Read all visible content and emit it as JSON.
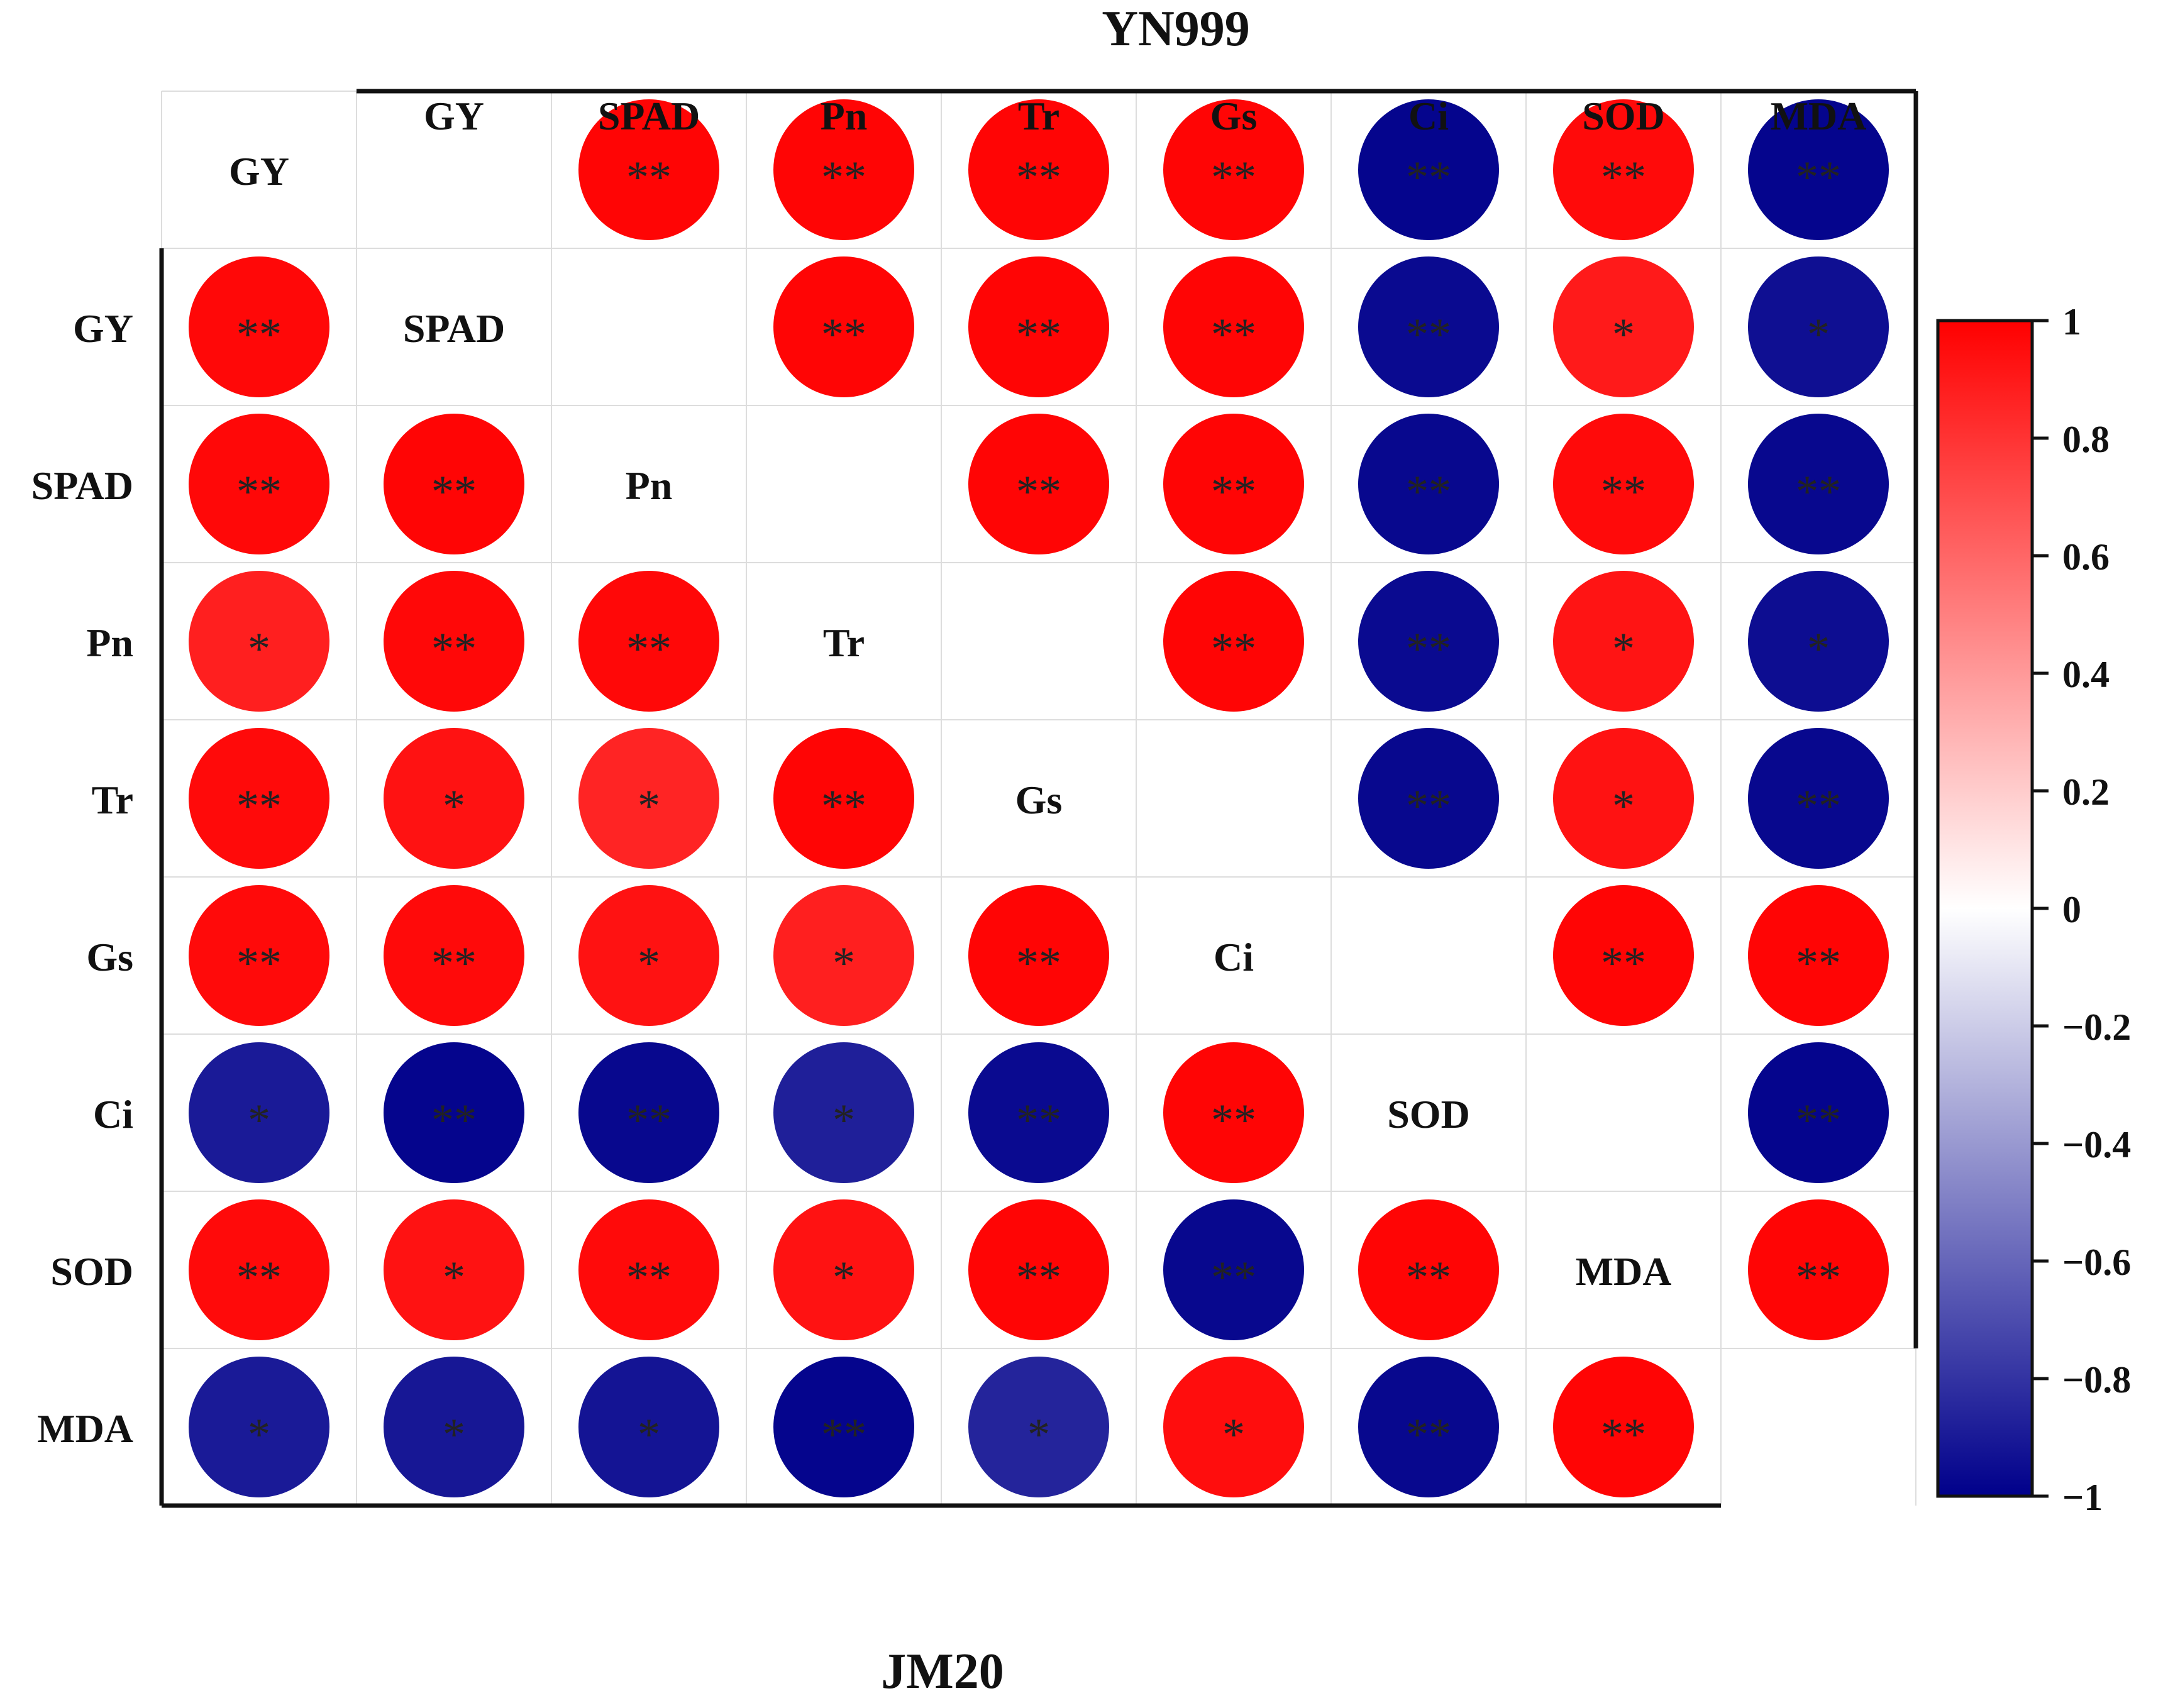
{
  "chart_data": {
    "type": "heatmap",
    "top_title": "YN999",
    "bottom_title": "JM20",
    "variables": [
      "GY",
      "SPAD",
      "Pn",
      "Tr",
      "Gs",
      "Ci",
      "SOD",
      "MDA"
    ],
    "upper_matrix": [
      [
        null,
        0.98,
        0.98,
        0.98,
        0.98,
        -0.98,
        0.96,
        -0.98
      ],
      [
        null,
        null,
        0.98,
        0.98,
        0.98,
        -0.96,
        0.9,
        -0.94
      ],
      [
        null,
        null,
        null,
        0.98,
        0.98,
        -0.97,
        0.96,
        -0.97
      ],
      [
        null,
        null,
        null,
        null,
        0.98,
        -0.96,
        0.92,
        -0.95
      ],
      [
        null,
        null,
        null,
        null,
        null,
        -0.97,
        0.93,
        -0.97
      ],
      [
        null,
        null,
        null,
        null,
        null,
        null,
        0.98,
        0.98
      ],
      [
        null,
        null,
        null,
        null,
        null,
        null,
        null,
        -0.98
      ],
      [
        null,
        null,
        null,
        null,
        null,
        null,
        null,
        0.98
      ]
    ],
    "upper_sig": [
      [
        null,
        "**",
        "**",
        "**",
        "**",
        "**",
        "**",
        "**"
      ],
      [
        null,
        null,
        "**",
        "**",
        "**",
        "**",
        "*",
        "*"
      ],
      [
        null,
        null,
        null,
        "**",
        "**",
        "**",
        "**",
        "**"
      ],
      [
        null,
        null,
        null,
        null,
        "**",
        "**",
        "*",
        "*"
      ],
      [
        null,
        null,
        null,
        null,
        null,
        "**",
        "*",
        "**"
      ],
      [
        null,
        null,
        null,
        null,
        null,
        null,
        "**",
        "**"
      ],
      [
        null,
        null,
        null,
        null,
        null,
        null,
        null,
        "**"
      ],
      [
        null,
        null,
        null,
        null,
        null,
        null,
        null,
        "**"
      ]
    ],
    "lower_matrix": [
      [
        0.97,
        null,
        null,
        null,
        null,
        null,
        null,
        null
      ],
      [
        0.97,
        0.98,
        null,
        null,
        null,
        null,
        null,
        null
      ],
      [
        0.88,
        0.97,
        0.97,
        null,
        null,
        null,
        null,
        null
      ],
      [
        0.96,
        0.93,
        0.86,
        0.98,
        null,
        null,
        null,
        null
      ],
      [
        0.96,
        0.96,
        0.93,
        0.88,
        0.98,
        null,
        null,
        null
      ],
      [
        -0.9,
        -0.98,
        -0.97,
        -0.88,
        -0.96,
        0.98,
        null,
        null
      ],
      [
        0.96,
        0.93,
        0.96,
        0.93,
        0.98,
        -0.97,
        0.98,
        null
      ],
      [
        -0.9,
        -0.91,
        -0.92,
        -0.98,
        -0.86,
        0.95,
        -0.97,
        0.98
      ]
    ],
    "lower_sig": [
      [
        "**",
        null,
        null,
        null,
        null,
        null,
        null,
        null
      ],
      [
        "**",
        "**",
        null,
        null,
        null,
        null,
        null,
        null
      ],
      [
        "*",
        "**",
        "**",
        null,
        null,
        null,
        null,
        null
      ],
      [
        "**",
        "*",
        "*",
        "**",
        null,
        null,
        null,
        null
      ],
      [
        "**",
        "**",
        "*",
        "*",
        "**",
        null,
        null,
        null
      ],
      [
        "*",
        "**",
        "**",
        "*",
        "**",
        "**",
        null,
        null
      ],
      [
        "**",
        "*",
        "**",
        "*",
        "**",
        "**",
        "**",
        null
      ],
      [
        "*",
        "*",
        "*",
        "**",
        "*",
        "*",
        "**",
        "**"
      ]
    ],
    "colorbar": {
      "range": [
        -1,
        1
      ],
      "ticks": [
        "1",
        "0.8",
        "0.6",
        "0.4",
        "0.2",
        "0",
        "−0.2",
        "−0.4",
        "−0.6",
        "−0.8",
        "−1"
      ],
      "tick_values": [
        1,
        0.8,
        0.6,
        0.4,
        0.2,
        0,
        -0.2,
        -0.4,
        -0.6,
        -0.8,
        -1
      ],
      "colors": {
        "high": "#ff0000",
        "mid": "#ffffff",
        "low": "#00008b"
      },
      "placement": "right"
    }
  }
}
